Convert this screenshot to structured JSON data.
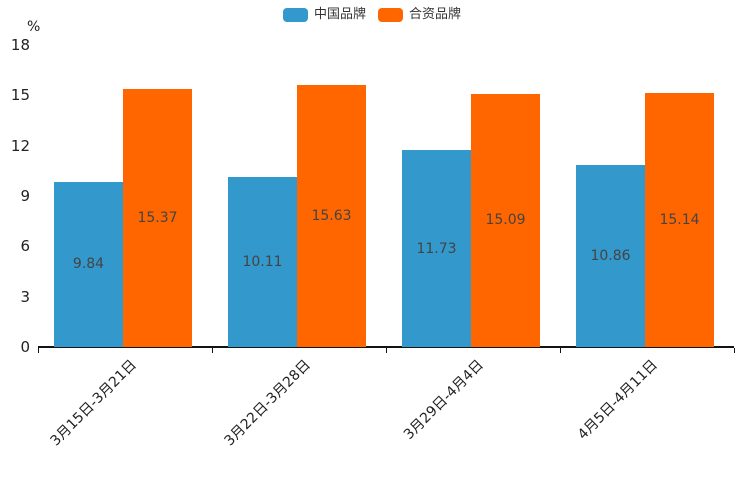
{
  "chart": {
    "unit_label": "%"
  },
  "chart_data": {
    "type": "bar",
    "title": "",
    "categories": [
      "3月15日-3月21日",
      "3月22日-3月28日",
      "3月29日-4月4日",
      "4月5日-4月11日"
    ],
    "series": [
      {
        "name": "中国品牌",
        "color": "#3398CC",
        "values": [
          9.84,
          10.11,
          11.73,
          10.86
        ]
      },
      {
        "name": "合资品牌",
        "color": "#FF6600",
        "values": [
          15.37,
          15.63,
          15.09,
          15.14
        ]
      }
    ],
    "xlabel": "",
    "ylabel": "%",
    "ylim": [
      0,
      18
    ],
    "yticks": [
      0,
      3,
      6,
      9,
      12,
      15,
      18
    ],
    "grid": false,
    "legend_position": "top-center",
    "data_labels": true,
    "label_color": "#444444",
    "axis_color": "#141414",
    "background": "#ffffff"
  }
}
